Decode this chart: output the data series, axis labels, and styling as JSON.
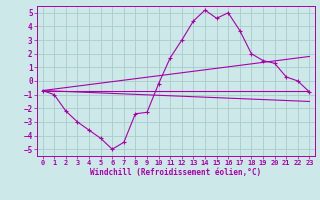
{
  "xlabel": "Windchill (Refroidissement éolien,°C)",
  "xlim": [
    -0.5,
    23.5
  ],
  "ylim": [
    -5.5,
    5.5
  ],
  "xticks": [
    0,
    1,
    2,
    3,
    4,
    5,
    6,
    7,
    8,
    9,
    10,
    11,
    12,
    13,
    14,
    15,
    16,
    17,
    18,
    19,
    20,
    21,
    22,
    23
  ],
  "yticks": [
    -5,
    -4,
    -3,
    -2,
    -1,
    0,
    1,
    2,
    3,
    4,
    5
  ],
  "background_color": "#cce8e8",
  "grid_color": "#aacccc",
  "line_color": "#aa00aa",
  "zigzag_x": [
    0,
    1,
    2,
    3,
    4,
    5,
    6,
    7,
    8,
    9,
    10,
    11,
    12,
    13,
    14,
    15,
    16,
    17,
    18,
    19,
    20,
    21,
    22,
    23
  ],
  "zigzag_y": [
    -0.7,
    -1.0,
    -2.2,
    -3.0,
    -3.6,
    -4.2,
    -5.0,
    -4.5,
    -2.4,
    -2.3,
    -0.2,
    1.7,
    3.0,
    4.4,
    5.2,
    4.6,
    5.0,
    3.7,
    2.0,
    1.5,
    1.3,
    0.3,
    0.0,
    -0.8
  ],
  "line2_x": [
    0,
    23
  ],
  "line2_y": [
    -0.7,
    1.8
  ],
  "line3_x": [
    0,
    23
  ],
  "line3_y": [
    -0.7,
    -0.7
  ],
  "line4_x": [
    0,
    23
  ],
  "line4_y": [
    -0.7,
    -1.5
  ]
}
